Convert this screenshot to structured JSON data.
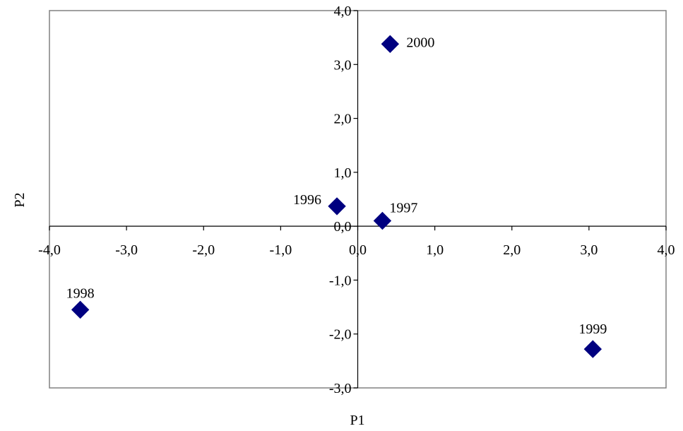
{
  "chart_data": {
    "type": "scatter",
    "title": "",
    "xlabel": "P1",
    "ylabel": "P2",
    "xlim": [
      -4.0,
      4.0
    ],
    "ylim": [
      -3.0,
      4.0
    ],
    "x_ticks": [
      -4.0,
      -3.0,
      -2.0,
      -1.0,
      0.0,
      1.0,
      2.0,
      3.0,
      4.0
    ],
    "y_ticks": [
      -3.0,
      -2.0,
      -1.0,
      0.0,
      1.0,
      2.0,
      3.0,
      4.0
    ],
    "x_tick_labels": [
      "-4,0",
      "-3,0",
      "-2,0",
      "-1,0",
      "0,0",
      "1,0",
      "2,0",
      "3,0",
      "4,0"
    ],
    "y_tick_labels": [
      "-3,0",
      "-2,0",
      "-1,0",
      "0,0",
      "1,0",
      "2,0",
      "3,0",
      "4,0"
    ],
    "grid": false,
    "legend": "none",
    "marker": "diamond",
    "marker_color": "#000080",
    "points": [
      {
        "label": "1996",
        "x": -0.27,
        "y": 0.37
      },
      {
        "label": "1997",
        "x": 0.32,
        "y": 0.1
      },
      {
        "label": "1998",
        "x": -3.6,
        "y": -1.55
      },
      {
        "label": "1999",
        "x": 3.05,
        "y": -2.28
      },
      {
        "label": "2000",
        "x": 0.42,
        "y": 3.38
      }
    ]
  }
}
